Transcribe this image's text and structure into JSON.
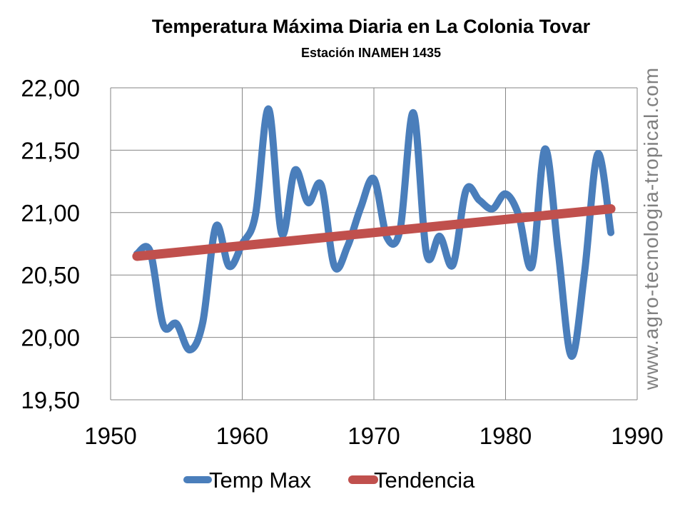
{
  "chart_data": {
    "type": "line",
    "title": "Temperatura Máxima Diaria en La Colonia Tovar",
    "subtitle": "Estación INAMEH 1435",
    "xlabel": "",
    "ylabel": "",
    "xlim": [
      1950,
      1990
    ],
    "ylim": [
      19.5,
      22.0
    ],
    "x_ticks": [
      "1950",
      "1960",
      "1970",
      "1980",
      "1990"
    ],
    "y_ticks": [
      "19,50",
      "20,00",
      "20,50",
      "21,00",
      "21,50",
      "22,00"
    ],
    "grid": true,
    "legend_position": "bottom",
    "x": [
      1952,
      1953,
      1954,
      1955,
      1956,
      1957,
      1958,
      1959,
      1960,
      1961,
      1962,
      1963,
      1964,
      1965,
      1966,
      1967,
      1968,
      1969,
      1970,
      1971,
      1972,
      1973,
      1974,
      1975,
      1976,
      1977,
      1978,
      1979,
      1980,
      1981,
      1982,
      1983,
      1984,
      1985,
      1986,
      1987,
      1988
    ],
    "series": [
      {
        "name": "Temp Max",
        "color": "#4a7ebb",
        "smooth": true,
        "values": [
          20.67,
          20.69,
          20.1,
          20.11,
          19.9,
          20.12,
          20.89,
          20.57,
          20.75,
          20.98,
          21.83,
          20.83,
          21.34,
          21.08,
          21.22,
          20.57,
          20.73,
          21.04,
          21.27,
          20.8,
          20.87,
          21.8,
          20.67,
          20.81,
          20.58,
          21.18,
          21.1,
          21.03,
          21.15,
          20.98,
          20.57,
          21.51,
          20.69,
          19.85,
          20.52,
          21.47,
          20.84
        ]
      },
      {
        "name": "Tendencia",
        "color": "#c0504d",
        "type": "linear-trend",
        "x": [
          1952,
          1988
        ],
        "values": [
          20.65,
          21.03
        ]
      }
    ]
  },
  "watermark": "www.agro-tecnologia-tropical.com"
}
